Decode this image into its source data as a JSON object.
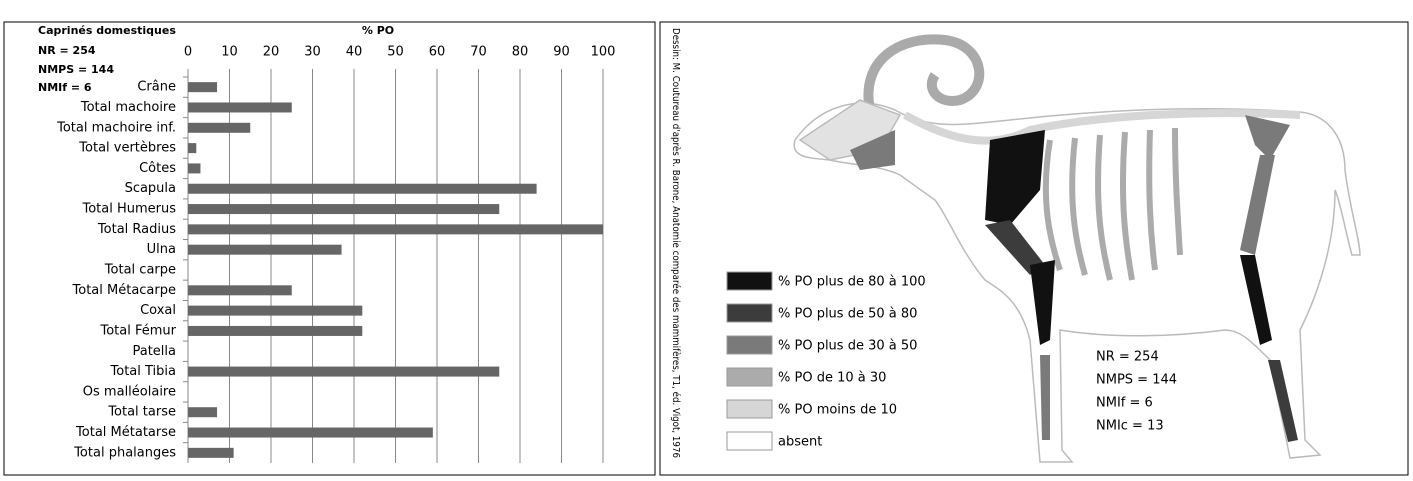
{
  "chart_data": {
    "type": "bar",
    "orientation": "horizontal",
    "title": "Caprinés domestiques",
    "annotations": [
      "NR = 254",
      "NMPS = 144",
      "NMIf = 6"
    ],
    "xlabel": "% PO",
    "categories": [
      "Crâne",
      "Total machoire",
      "Total machoire inf.",
      "Total vertèbres",
      "Côtes",
      "Scapula",
      "Total Humerus",
      "Total Radius",
      "Ulna",
      "Total carpe",
      "Total Métacarpe",
      "Coxal",
      "Total Fémur",
      "Patella",
      "Total Tibia",
      "Os malléolaire",
      "Total tarse",
      "Total Métatarse",
      "Total phalanges"
    ],
    "values": [
      7,
      25,
      15,
      2,
      3,
      84,
      75,
      100,
      37,
      0,
      25,
      42,
      42,
      0,
      75,
      0,
      7,
      59,
      11
    ],
    "color": "#666666",
    "xlim": [
      0,
      100
    ],
    "xticks": [
      0,
      10,
      20,
      30,
      40,
      50,
      60,
      70,
      80,
      90,
      100
    ],
    "grid": true
  },
  "diagram": {
    "credit": "Dessin: M. Coutureau d'après R. Barone, Anatomie comparée des mammifères, T1, éd. Vigot, 1976",
    "legend": [
      {
        "label": "% PO plus de 80 à 100",
        "color": "#111111"
      },
      {
        "label": "% PO  plus de 50 à 80",
        "color": "#3c3c3c"
      },
      {
        "label": "% PO plus de 30 à 50",
        "color": "#7a7a7a"
      },
      {
        "label": "% PO de 10 à 30",
        "color": "#ababab"
      },
      {
        "label": "% PO moins de 10",
        "color": "#d6d6d6"
      },
      {
        "label": "absent",
        "color": "#ffffff"
      }
    ],
    "stats": [
      "NR = 254",
      "NMPS = 144",
      "NMIf = 6",
      "NMIc = 13"
    ]
  }
}
